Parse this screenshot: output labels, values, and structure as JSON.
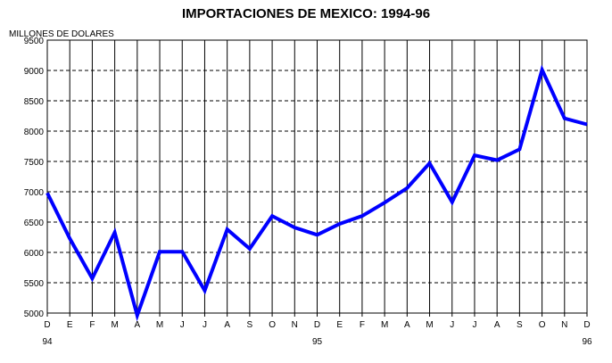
{
  "chart_data": {
    "type": "line",
    "title": "IMPORTACIONES DE MEXICO: 1994-96",
    "ylabel": "MILLONES DE DOLARES",
    "xlabel": "",
    "ylim": [
      5000,
      9500
    ],
    "yticks": [
      "5000",
      "5500",
      "6000",
      "6500",
      "7000",
      "7500",
      "8000",
      "8500",
      "9000",
      "9500"
    ],
    "categories": [
      "D",
      "E",
      "F",
      "M",
      "A",
      "M",
      "J",
      "J",
      "A",
      "S",
      "O",
      "N",
      "D",
      "E",
      "F",
      "M",
      "A",
      "M",
      "J",
      "J",
      "A",
      "S",
      "O",
      "N",
      "D"
    ],
    "year_labels": [
      {
        "index": 0,
        "label": "94"
      },
      {
        "index": 12,
        "label": "95"
      },
      {
        "index": 24,
        "label": "96"
      }
    ],
    "series": [
      {
        "values": [
          6980,
          6230,
          5570,
          6330,
          4960,
          6010,
          6010,
          5370,
          6380,
          6060,
          6600,
          6410,
          6290,
          6470,
          6600,
          6820,
          7060,
          7470,
          6830,
          7600,
          7520,
          7700,
          9010,
          8210,
          8110
        ]
      }
    ],
    "grid": {
      "horizontal": "dashed",
      "vertical": "solid"
    },
    "line_color": "#0000ff"
  }
}
